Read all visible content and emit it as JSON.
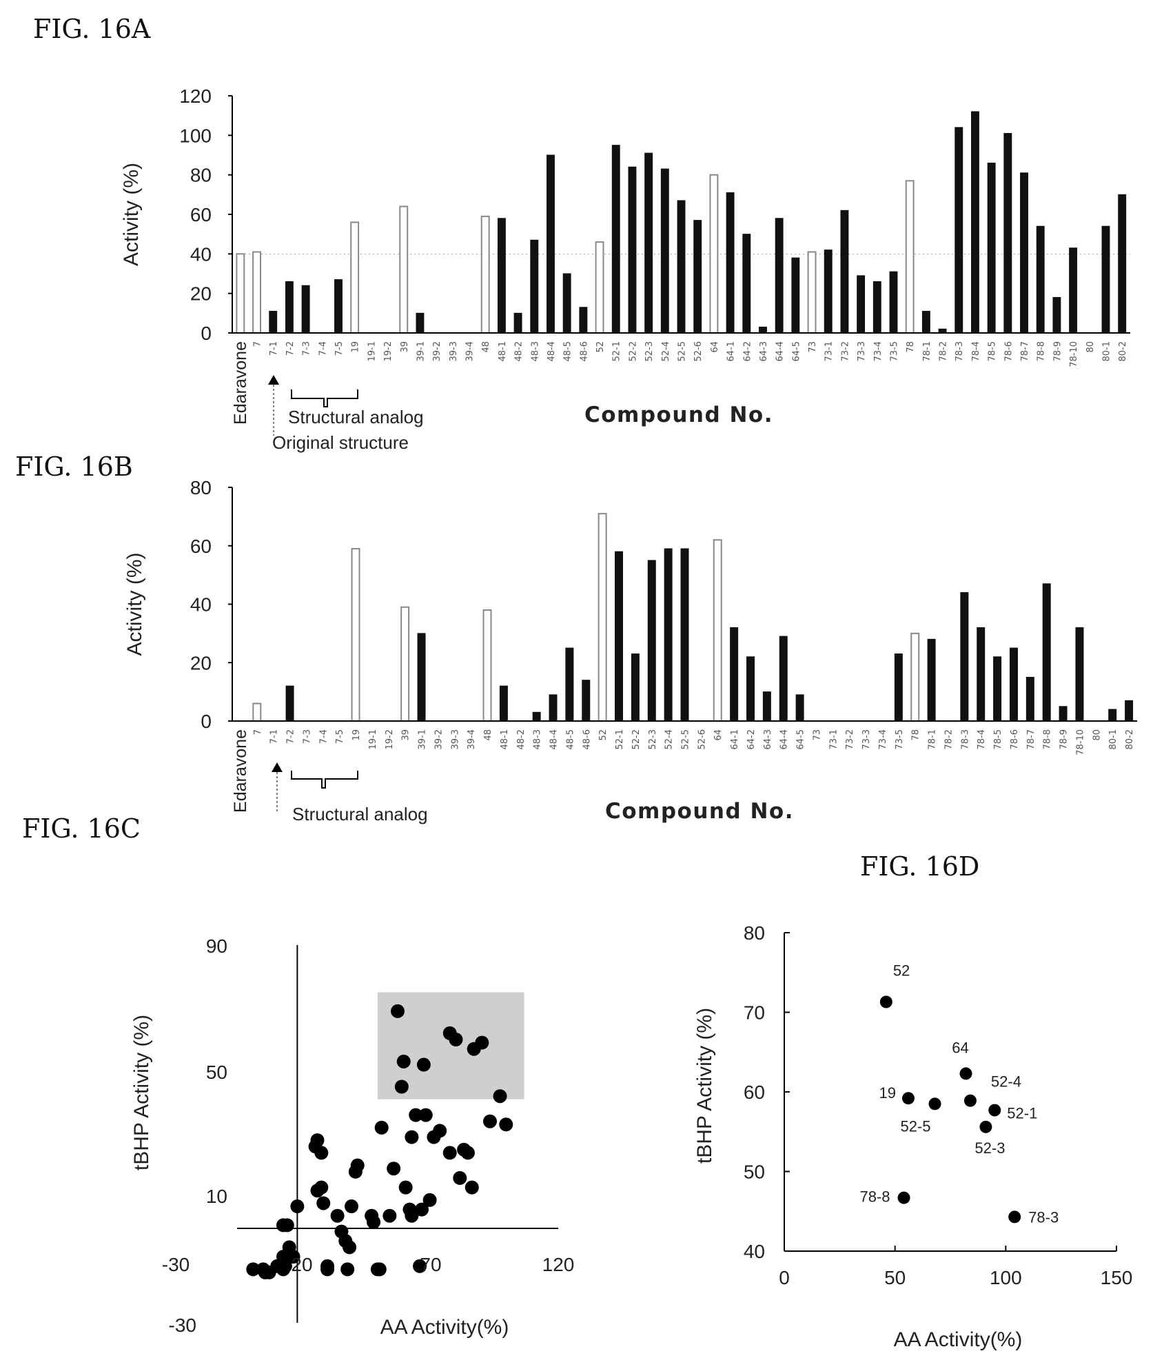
{
  "figures": {
    "a_label": "FIG. 16A",
    "b_label": "FIG. 16B",
    "c_label": "FIG. 16C",
    "d_label": "FIG. 16D"
  },
  "annotations": {
    "structural_analog": "Structural analog",
    "original_structure": "Original structure"
  },
  "chart_data": [
    {
      "id": "16A",
      "type": "bar",
      "xlabel": "Compound No.",
      "ylabel": "Activity (%)",
      "ylim": [
        0,
        120
      ],
      "yticks": [
        0,
        20,
        40,
        60,
        80,
        100,
        120
      ],
      "reference_line": 40,
      "categories": [
        "Edaravone",
        "7",
        "7-1",
        "7-2",
        "7-3",
        "7-4",
        "7-5",
        "19",
        "19-1",
        "19-2",
        "39",
        "39-1",
        "39-2",
        "39-3",
        "39-4",
        "48",
        "48-1",
        "48-2",
        "48-3",
        "48-4",
        "48-5",
        "48-6",
        "52",
        "52-1",
        "52-2",
        "52-3",
        "52-4",
        "52-5",
        "52-6",
        "64",
        "64-1",
        "64-2",
        "64-3",
        "64-4",
        "64-5",
        "73",
        "73-1",
        "73-2",
        "73-3",
        "73-4",
        "73-5",
        "78",
        "78-1",
        "78-2",
        "78-3",
        "78-4",
        "78-5",
        "78-6",
        "78-7",
        "78-8",
        "78-9",
        "78-10",
        "80",
        "80-1",
        "80-2"
      ],
      "values": [
        40,
        41,
        11,
        26,
        24,
        0,
        27,
        56,
        0,
        0,
        64,
        10,
        0,
        0,
        0,
        59,
        58,
        10,
        47,
        90,
        30,
        13,
        46,
        95,
        84,
        91,
        83,
        67,
        57,
        80,
        71,
        50,
        3,
        58,
        38,
        41,
        42,
        62,
        29,
        26,
        31,
        77,
        11,
        2,
        104,
        112,
        86,
        101,
        81,
        54,
        18,
        43,
        0,
        54,
        70
      ],
      "original_structure": [
        true,
        true,
        false,
        false,
        false,
        false,
        false,
        true,
        false,
        false,
        true,
        false,
        false,
        false,
        false,
        true,
        false,
        false,
        false,
        false,
        false,
        false,
        true,
        false,
        false,
        false,
        false,
        false,
        false,
        true,
        false,
        false,
        false,
        false,
        false,
        true,
        false,
        false,
        false,
        false,
        false,
        true,
        false,
        false,
        false,
        false,
        false,
        false,
        false,
        false,
        false,
        false,
        true,
        false,
        false
      ]
    },
    {
      "id": "16B",
      "type": "bar",
      "xlabel": "Compound No.",
      "ylabel": "Activity (%)",
      "ylim": [
        0,
        80
      ],
      "yticks": [
        0,
        20,
        40,
        60,
        80
      ],
      "categories": [
        "Edaravone",
        "7",
        "7-1",
        "7-2",
        "7-3",
        "7-4",
        "7-5",
        "19",
        "19-1",
        "19-2",
        "39",
        "39-1",
        "39-2",
        "39-3",
        "39-4",
        "48",
        "48-1",
        "48-2",
        "48-3",
        "48-4",
        "48-5",
        "48-6",
        "52",
        "52-1",
        "52-2",
        "52-3",
        "52-4",
        "52-5",
        "52-6",
        "64",
        "64-1",
        "64-2",
        "64-3",
        "64-4",
        "64-5",
        "73",
        "73-1",
        "73-2",
        "73-3",
        "73-4",
        "73-5",
        "78",
        "78-1",
        "78-2",
        "78-3",
        "78-4",
        "78-5",
        "78-6",
        "78-7",
        "78-8",
        "78-9",
        "78-10",
        "80",
        "80-1",
        "80-2"
      ],
      "values": [
        0,
        6,
        0,
        12,
        0,
        0,
        0,
        59,
        0,
        0,
        39,
        30,
        0,
        0,
        0,
        38,
        12,
        0,
        3,
        9,
        25,
        14,
        71,
        58,
        23,
        55,
        59,
        59,
        0,
        62,
        32,
        22,
        10,
        29,
        9,
        0,
        0,
        0,
        0,
        0,
        23,
        30,
        28,
        0,
        44,
        32,
        22,
        25,
        15,
        47,
        5,
        32,
        0,
        4,
        7
      ],
      "original_structure": [
        true,
        true,
        false,
        false,
        false,
        false,
        false,
        true,
        false,
        false,
        true,
        false,
        false,
        false,
        false,
        true,
        false,
        false,
        false,
        false,
        false,
        false,
        true,
        false,
        false,
        false,
        false,
        false,
        false,
        true,
        false,
        false,
        false,
        false,
        false,
        true,
        false,
        false,
        false,
        false,
        false,
        true,
        false,
        false,
        false,
        false,
        false,
        false,
        false,
        false,
        false,
        false,
        true,
        false,
        false
      ]
    },
    {
      "id": "16C",
      "type": "scatter",
      "xlabel": "AA Activity(%)",
      "ylabel": "tBHP Activity (%)",
      "xlim": [
        -30,
        130
      ],
      "ylim": [
        -30,
        90
      ],
      "xticks": [
        -30,
        20,
        70,
        120
      ],
      "yticks": [
        -30,
        10,
        50,
        90
      ],
      "highlight_region": {
        "x": [
          40,
          113
        ],
        "y": [
          41,
          75
        ]
      },
      "points": [
        [
          -22,
          -13
        ],
        [
          -17,
          -13
        ],
        [
          -16,
          -14
        ],
        [
          -14,
          -14
        ],
        [
          -10,
          -12
        ],
        [
          -7,
          -9
        ],
        [
          -7,
          1
        ],
        [
          -5,
          1
        ],
        [
          -2,
          -9
        ],
        [
          0,
          7
        ],
        [
          -4,
          -6
        ],
        [
          -6,
          -12
        ],
        [
          -7,
          -13
        ],
        [
          10,
          12
        ],
        [
          12,
          13
        ],
        [
          9,
          26
        ],
        [
          10,
          28
        ],
        [
          12,
          24
        ],
        [
          13,
          8
        ],
        [
          15,
          -12
        ],
        [
          15,
          -13
        ],
        [
          20,
          4
        ],
        [
          22,
          -1
        ],
        [
          24,
          -4
        ],
        [
          25,
          -13
        ],
        [
          26,
          -6
        ],
        [
          27,
          7
        ],
        [
          29,
          18
        ],
        [
          30,
          20
        ],
        [
          37,
          4
        ],
        [
          38,
          2
        ],
        [
          40,
          -13
        ],
        [
          41,
          -13
        ],
        [
          42,
          32
        ],
        [
          46,
          4
        ],
        [
          48,
          19
        ],
        [
          50,
          69
        ],
        [
          52,
          45
        ],
        [
          53,
          53
        ],
        [
          54,
          13
        ],
        [
          56,
          6
        ],
        [
          57,
          4
        ],
        [
          57,
          29
        ],
        [
          59,
          36
        ],
        [
          61,
          -12
        ],
        [
          62,
          6
        ],
        [
          63,
          52
        ],
        [
          64,
          36
        ],
        [
          66,
          9
        ],
        [
          68,
          29
        ],
        [
          71,
          31
        ],
        [
          76,
          62
        ],
        [
          76,
          24
        ],
        [
          79,
          60
        ],
        [
          81,
          16
        ],
        [
          83,
          25
        ],
        [
          85,
          24
        ],
        [
          87,
          13
        ],
        [
          88,
          57
        ],
        [
          92,
          59
        ],
        [
          96,
          34
        ],
        [
          101,
          42
        ],
        [
          104,
          33
        ]
      ]
    },
    {
      "id": "16D",
      "type": "scatter",
      "xlabel": "AA Activity(%)",
      "ylabel": "tBHP Activity (%)",
      "xlim": [
        0,
        150
      ],
      "ylim": [
        40,
        80
      ],
      "xticks": [
        0,
        50,
        100,
        150
      ],
      "yticks": [
        40,
        50,
        60,
        70,
        80
      ],
      "points": [
        {
          "x": 46,
          "y": 71.3,
          "label": "52"
        },
        {
          "x": 56,
          "y": 59.2,
          "label": "19"
        },
        {
          "x": 68,
          "y": 58.5,
          "label": "52-5"
        },
        {
          "x": 82,
          "y": 62.3,
          "label": "64"
        },
        {
          "x": 84,
          "y": 58.9,
          "label": "52-4"
        },
        {
          "x": 91,
          "y": 55.6,
          "label": "52-3"
        },
        {
          "x": 95,
          "y": 57.7,
          "label": "52-1"
        },
        {
          "x": 54,
          "y": 46.7,
          "label": "78-8"
        },
        {
          "x": 104,
          "y": 44.3,
          "label": "78-3"
        }
      ]
    }
  ]
}
